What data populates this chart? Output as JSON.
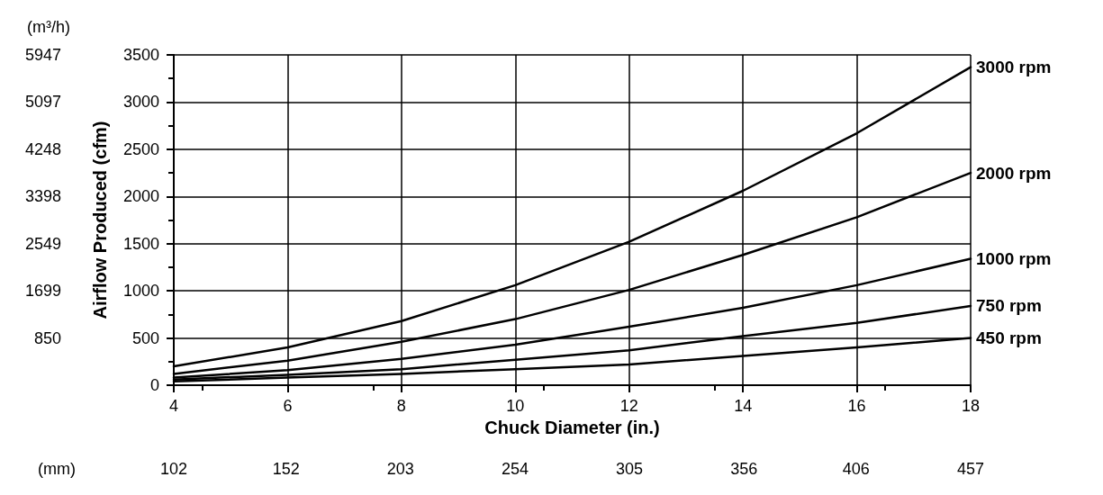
{
  "chart_data": {
    "type": "line",
    "xlabel": "Chuck Diameter (in.)",
    "ylabel": "Airflow Produced (cfm)",
    "y2label": "(m³/h)",
    "x2label": "(mm)",
    "x": [
      4,
      6,
      8,
      10,
      12,
      14,
      16,
      18
    ],
    "series": [
      {
        "name": "3000 rpm",
        "color": "#000000",
        "values": [
          200,
          400,
          680,
          1060,
          1520,
          2060,
          2670,
          3370
        ]
      },
      {
        "name": "2000 rpm",
        "color": "#000000",
        "values": [
          120,
          260,
          460,
          700,
          1010,
          1380,
          1780,
          2250
        ]
      },
      {
        "name": "1000 rpm",
        "color": "#000000",
        "values": [
          80,
          160,
          280,
          430,
          620,
          820,
          1060,
          1340
        ]
      },
      {
        "name": "750 rpm",
        "color": "#000000",
        "values": [
          60,
          110,
          170,
          270,
          370,
          520,
          660,
          840
        ]
      },
      {
        "name": "450 rpm",
        "color": "#000000",
        "values": [
          40,
          80,
          120,
          170,
          220,
          310,
          400,
          500
        ]
      }
    ],
    "xlim": [
      4,
      18
    ],
    "xticks": [
      4,
      6,
      8,
      10,
      12,
      14,
      16,
      18
    ],
    "ylim": [
      0,
      3500
    ],
    "yticks": [
      0,
      500,
      1000,
      1500,
      2000,
      2500,
      3000,
      3500
    ],
    "y2lim": [
      0,
      5947
    ],
    "y2ticks": [
      850,
      1699,
      2549,
      3398,
      4248,
      5097,
      5947
    ],
    "x2lim": [
      102,
      457
    ],
    "x2ticks": [
      102,
      152,
      203,
      254,
      305,
      356,
      406,
      457
    ],
    "grid": true,
    "legend": false,
    "marker": "none",
    "line_style": "solid"
  }
}
